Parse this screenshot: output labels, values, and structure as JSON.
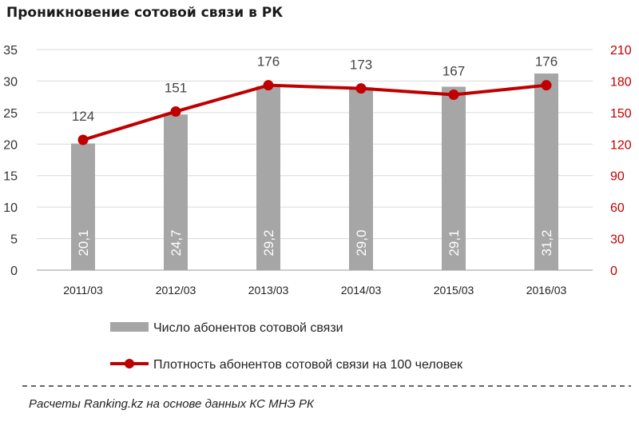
{
  "title": "Проникновение  сотовой связи в РК",
  "source": "Расчеты Ranking.kz на основе данных  КС МНЭ РК",
  "colors": {
    "bar": "#a6a6a6",
    "line": "#c00000",
    "right_axis": "#c00000"
  },
  "chart_data": {
    "type": "bar+line",
    "categories": [
      "2011/03",
      "2012/03",
      "2013/03",
      "2014/03",
      "2015/03",
      "2016/03"
    ],
    "series": [
      {
        "name": "Число абонентов сотовой связи",
        "type": "bar",
        "axis": "left",
        "values": [
          20.1,
          24.7,
          29.2,
          29.0,
          29.1,
          31.2
        ],
        "labels": [
          "20,1",
          "24,7",
          "29,2",
          "29,0",
          "29,1",
          "31,2"
        ]
      },
      {
        "name": "Плотность абонентов сотовой связи на 100 человек",
        "type": "line",
        "axis": "right",
        "values": [
          124,
          151,
          176,
          173,
          167,
          176
        ],
        "labels": [
          "124",
          "151",
          "176",
          "173",
          "167",
          "176"
        ]
      }
    ],
    "y_left": {
      "min": 0,
      "max": 35,
      "ticks": [
        "0",
        "5",
        "10",
        "15",
        "20",
        "25",
        "30",
        "35"
      ]
    },
    "y_right": {
      "min": 0,
      "max": 210,
      "ticks": [
        "0",
        "30",
        "60",
        "90",
        "120",
        "150",
        "180",
        "210"
      ]
    },
    "grid": true,
    "legend": "bottom"
  }
}
